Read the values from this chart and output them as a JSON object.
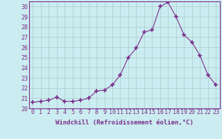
{
  "x": [
    0,
    1,
    2,
    3,
    4,
    5,
    6,
    7,
    8,
    9,
    10,
    11,
    12,
    13,
    14,
    15,
    16,
    17,
    18,
    19,
    20,
    21,
    22,
    23
  ],
  "y": [
    20.6,
    20.7,
    20.8,
    21.1,
    20.7,
    20.7,
    20.8,
    21.0,
    21.7,
    21.8,
    22.3,
    23.3,
    25.0,
    25.9,
    27.5,
    27.7,
    30.0,
    30.4,
    29.0,
    27.2,
    26.5,
    25.2,
    23.3,
    22.3
  ],
  "line_color": "#7b2d8b",
  "marker": "+",
  "marker_size": 4,
  "bg_color": "#cbecf0",
  "grid_color": "#aacccc",
  "xlabel": "Windchill (Refroidissement éolien,°C)",
  "ylim": [
    20,
    30.5
  ],
  "xlim": [
    -0.5,
    23.5
  ],
  "yticks": [
    20,
    21,
    22,
    23,
    24,
    25,
    26,
    27,
    28,
    29,
    30
  ],
  "xticks": [
    0,
    1,
    2,
    3,
    4,
    5,
    6,
    7,
    8,
    9,
    10,
    11,
    12,
    13,
    14,
    15,
    16,
    17,
    18,
    19,
    20,
    21,
    22,
    23
  ],
  "xlabel_fontsize": 6.5,
  "tick_fontsize": 6,
  "title_color": "#7b2d8b",
  "spine_color": "#7b2d8b"
}
